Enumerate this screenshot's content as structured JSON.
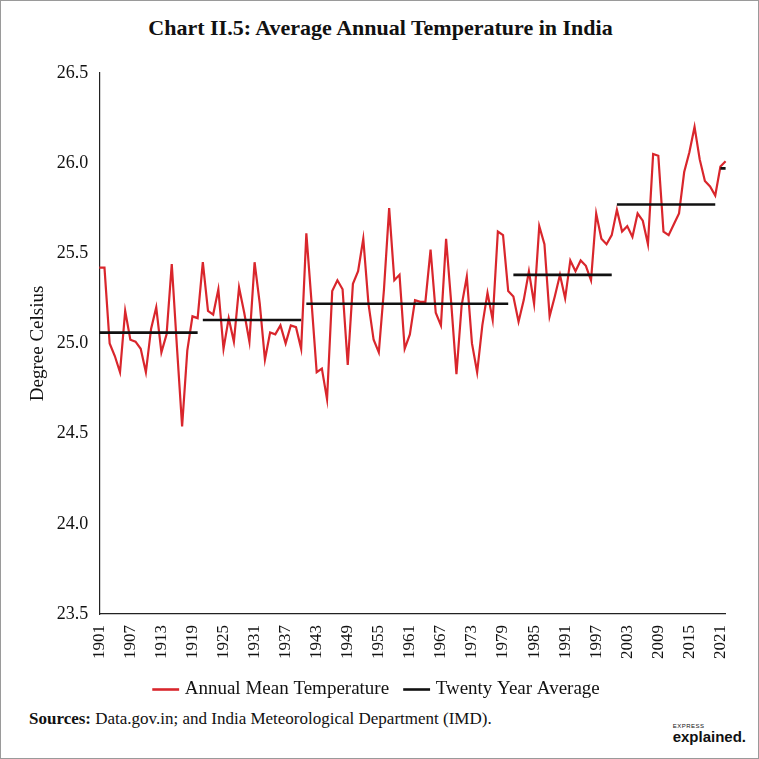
{
  "chart_data": {
    "type": "line",
    "title": "Chart II.5: Average Annual Temperature in India",
    "y_label": "Degree Celsius",
    "source_label": "Sources:",
    "source_text": "Data.gov.in; and India Meteorological Department (IMD).",
    "logo_small": "EXPRESS",
    "logo": "explained.",
    "categories": [
      "1901",
      null,
      null,
      null,
      null,
      null,
      "1907",
      null,
      null,
      null,
      null,
      null,
      "1913",
      null,
      null,
      null,
      null,
      null,
      "1919",
      null,
      null,
      null,
      null,
      null,
      "1925",
      null,
      null,
      null,
      null,
      null,
      "1931",
      null,
      null,
      null,
      null,
      null,
      "1937",
      null,
      null,
      null,
      null,
      null,
      "1943",
      null,
      null,
      null,
      null,
      null,
      "1949",
      null,
      null,
      null,
      null,
      null,
      "1955",
      null,
      null,
      null,
      null,
      null,
      "1961",
      null,
      null,
      null,
      null,
      null,
      "1967",
      null,
      null,
      null,
      null,
      null,
      "1973",
      null,
      null,
      null,
      null,
      null,
      "1979",
      null,
      null,
      null,
      null,
      null,
      "1985",
      null,
      null,
      null,
      null,
      null,
      "1991",
      null,
      null,
      null,
      null,
      null,
      "1997",
      null,
      null,
      null,
      null,
      null,
      "2003",
      null,
      null,
      null,
      null,
      null,
      "2009",
      null,
      null,
      null,
      null,
      null,
      "2015",
      null,
      null,
      null,
      null,
      null,
      "2021",
      null
    ],
    "series": [
      {
        "name": "Annual Mean Temperature",
        "color": "#d9262c",
        "type": "line",
        "line_style": "solid",
        "values": [
          25.42,
          25.42,
          25.0,
          24.93,
          24.84,
          25.18,
          25.02,
          25.01,
          24.97,
          24.84,
          25.08,
          25.2,
          24.95,
          25.05,
          25.44,
          24.98,
          24.54,
          24.96,
          25.15,
          25.14,
          25.45,
          25.18,
          25.16,
          25.3,
          24.97,
          25.14,
          25.01,
          25.31,
          25.17,
          25.01,
          25.45,
          25.22,
          24.91,
          25.06,
          25.05,
          25.1,
          25.0,
          25.1,
          25.09,
          24.97,
          25.61,
          25.23,
          24.84,
          24.86,
          24.69,
          25.29,
          25.35,
          25.3,
          24.88,
          25.33,
          25.4,
          25.58,
          25.22,
          25.02,
          24.95,
          25.3,
          25.75,
          25.35,
          25.38,
          24.97,
          25.05,
          25.24,
          25.23,
          25.23,
          25.52,
          25.17,
          25.1,
          25.58,
          25.22,
          24.83,
          25.21,
          25.37,
          25.0,
          24.84,
          25.1,
          25.28,
          25.13,
          25.62,
          25.6,
          25.29,
          25.26,
          25.12,
          25.24,
          25.4,
          25.22,
          25.65,
          25.55,
          25.15,
          25.26,
          25.38,
          25.25,
          25.46,
          25.4,
          25.46,
          25.43,
          25.35,
          25.72,
          25.58,
          25.55,
          25.6,
          25.74,
          25.62,
          25.65,
          25.59,
          25.72,
          25.68,
          25.55,
          26.05,
          26.04,
          25.62,
          25.6,
          25.66,
          25.72,
          25.95,
          26.06,
          26.2,
          26.02,
          25.9,
          25.87,
          25.82,
          25.98,
          26.01
        ]
      },
      {
        "name": "Twenty Year Average",
        "color": "#111111",
        "type": "line",
        "line_style": "solid",
        "values": [
          25.06,
          25.06,
          25.06,
          25.06,
          25.06,
          25.06,
          25.06,
          25.06,
          25.06,
          25.06,
          25.06,
          25.06,
          25.06,
          25.06,
          25.06,
          25.06,
          25.06,
          25.06,
          25.06,
          25.06,
          25.13,
          25.13,
          25.13,
          25.13,
          25.13,
          25.13,
          25.13,
          25.13,
          25.13,
          25.13,
          25.13,
          25.13,
          25.13,
          25.13,
          25.13,
          25.13,
          25.13,
          25.13,
          25.13,
          25.13,
          25.22,
          25.22,
          25.22,
          25.22,
          25.22,
          25.22,
          25.22,
          25.22,
          25.22,
          25.22,
          25.22,
          25.22,
          25.22,
          25.22,
          25.22,
          25.22,
          25.22,
          25.22,
          25.22,
          25.22,
          25.22,
          25.22,
          25.22,
          25.22,
          25.22,
          25.22,
          25.22,
          25.22,
          25.22,
          25.22,
          25.22,
          25.22,
          25.22,
          25.22,
          25.22,
          25.22,
          25.22,
          25.22,
          25.22,
          25.22,
          25.38,
          25.38,
          25.38,
          25.38,
          25.38,
          25.38,
          25.38,
          25.38,
          25.38,
          25.38,
          25.38,
          25.38,
          25.38,
          25.38,
          25.38,
          25.38,
          25.38,
          25.38,
          25.38,
          25.38,
          25.77,
          25.77,
          25.77,
          25.77,
          25.77,
          25.77,
          25.77,
          25.77,
          25.77,
          25.77,
          25.77,
          25.77,
          25.77,
          25.77,
          25.77,
          25.77,
          25.77,
          25.77,
          25.77,
          25.77,
          25.97,
          25.97
        ]
      }
    ],
    "ylim": [
      23.5,
      26.5
    ],
    "yticks": [
      23.5,
      {
        "value": 24,
        "label": "24.0"
      },
      24.5,
      {
        "value": 25,
        "label": "25.0"
      },
      25.5,
      {
        "value": 26,
        "label": "26.0"
      },
      26.5
    ],
    "grid": false,
    "legend": "bottom"
  }
}
